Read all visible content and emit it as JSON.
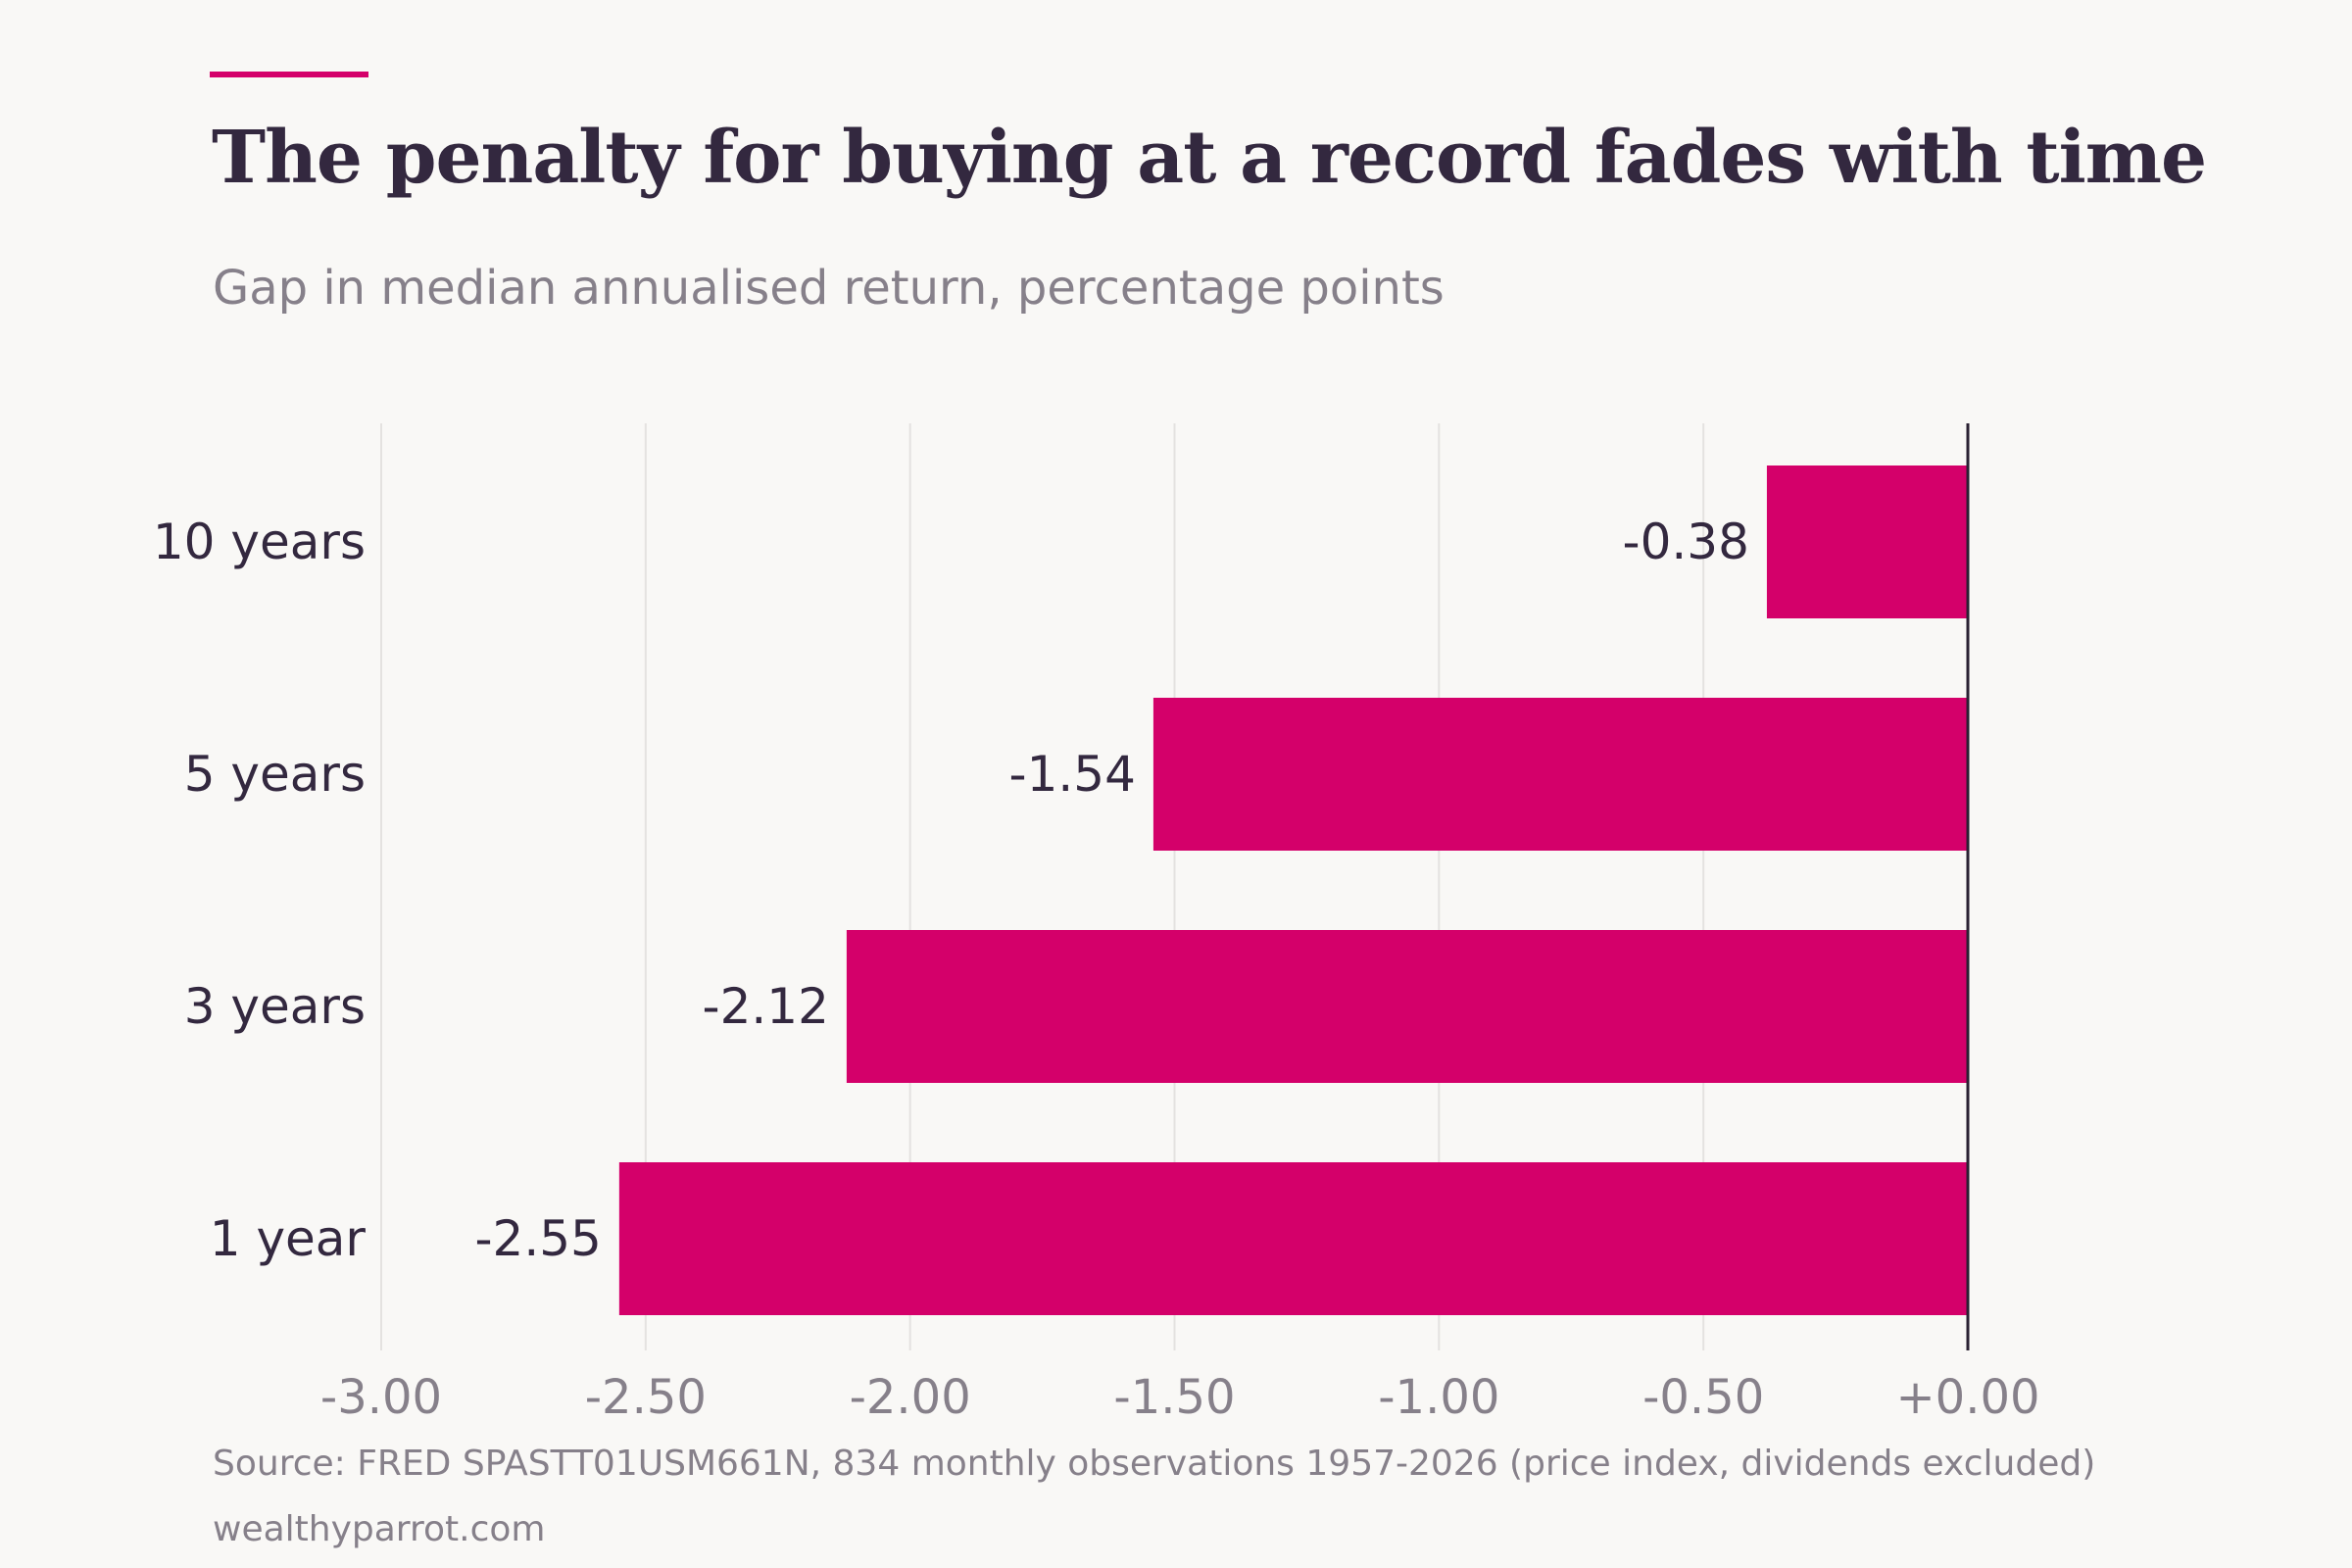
{
  "header": {
    "title": "The penalty for buying at a record fades with time",
    "subtitle": "Gap in median annualised return, percentage points"
  },
  "footer": {
    "source": "Source: FRED SPASTT01USM661N, 834 monthly observations 1957-2026 (price index, dividends excluded)",
    "brand": "wealthyparrot.com"
  },
  "colors": {
    "accent": "#d4006a",
    "bar": "#d4006a",
    "title": "#33283f",
    "muted": "#86808a",
    "grid": "#e4e2e0",
    "zero_line": "#2a2133",
    "background": "#f9f8f6"
  },
  "chart_data": {
    "type": "bar",
    "orientation": "horizontal",
    "title": "The penalty for buying at a record fades with time",
    "subtitle": "Gap in median annualised return, percentage points",
    "categories": [
      "10 years",
      "5 years",
      "3 years",
      "1 year"
    ],
    "values": [
      -0.38,
      -1.54,
      -2.12,
      -2.55
    ],
    "data_labels": [
      "-0.38",
      "-1.54",
      "-2.12",
      "-2.55"
    ],
    "xlim": [
      -3.0,
      0.0
    ],
    "x_ticks": [
      -3.0,
      -2.5,
      -2.0,
      -1.5,
      -1.0,
      -0.5,
      0.0
    ],
    "x_tick_labels": [
      "-3.00",
      "-2.50",
      "-2.00",
      "-1.50",
      "-1.00",
      "-0.50",
      "+0.00"
    ],
    "grid": "vertical",
    "legend": "none"
  }
}
